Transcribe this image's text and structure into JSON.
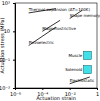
{
  "chart_data": {
    "type": "line",
    "log": true,
    "x_label": "Actuation strain",
    "y_label": "Actuation stress (MPa)",
    "xlim": [
      1e-06,
      1
    ],
    "xticks": [
      {
        "value": 1e-06,
        "label": "10⁻⁶"
      },
      {
        "value": 0.0001,
        "label": "10⁻⁴"
      },
      {
        "value": 0.01,
        "label": "10⁻²"
      },
      {
        "value": 1,
        "label": "1"
      }
    ],
    "ylim": [
      0.001,
      1000
    ],
    "yticks": [
      {
        "value": 0.001,
        "label": "10⁻³"
      },
      {
        "value": 0.1,
        "label": "10⁻¹"
      },
      {
        "value": 10,
        "label": "10"
      },
      {
        "value": 1000,
        "label": "10³"
      }
    ],
    "series": [
      {
        "name": "Thermal expansion (ΔT=100K)",
        "color": "#000000",
        "line_style": "solid",
        "x": [
          1e-05,
          0.001
        ],
        "values": [
          200,
          400
        ]
      },
      {
        "name": "Shape memory alloy",
        "color": "#000000",
        "line_style": "solid",
        "x": [
          0.01,
          0.08
        ],
        "values": [
          80,
          300
        ]
      },
      {
        "name": "Magnetostrictive",
        "color": "#000000",
        "line_style": "solid",
        "x": [
          0.0001,
          0.002
        ],
        "values": [
          10,
          60
        ]
      },
      {
        "name": "Piezoelectric",
        "color": "#000000",
        "line_style": "solid",
        "x": [
          1e-05,
          0.001
        ],
        "values": [
          1,
          20
        ]
      },
      {
        "name": "Muscle",
        "type": "box",
        "color": "#40e0e8",
        "x": [
          0.1,
          0.4
        ],
        "values": [
          0.1,
          0.4
        ]
      },
      {
        "name": "Solenoid",
        "type": "box",
        "color": "#40e0e8",
        "x": [
          0.1,
          0.4
        ],
        "values": [
          0.01,
          0.04
        ]
      },
      {
        "name": "Electrostatic",
        "color": "#000000",
        "line_style": "solid",
        "x": [
          0.01,
          0.3
        ],
        "values": [
          0.002,
          0.006
        ]
      }
    ]
  }
}
